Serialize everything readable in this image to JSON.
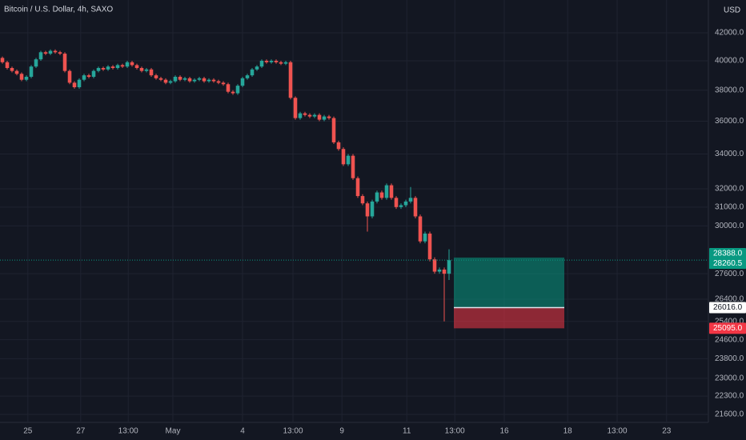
{
  "chart_data": {
    "type": "candlestick",
    "title": "Bitcoin / U.S. Dollar, 4h, SAXO",
    "currency": "USD",
    "up_color": "#26a69a",
    "down_color": "#ef5350",
    "log_scale": true,
    "grid": true,
    "open": [
      40200,
      39900,
      39500,
      39300,
      39100,
      38700,
      38900,
      39600,
      40100,
      40600,
      40500,
      40700,
      40600,
      40500,
      39300,
      38500,
      38200,
      38700,
      39000,
      38900,
      39300,
      39500,
      39400,
      39600,
      39500,
      39700,
      39600,
      39900,
      39700,
      39500,
      39300,
      39400,
      39000,
      38800,
      38700,
      38500,
      38600,
      38900,
      38700,
      38800,
      38600,
      38700,
      38800,
      38600,
      38700,
      38600,
      38500,
      38400,
      37900,
      37800,
      38300,
      38800,
      39000,
      39400,
      39600,
      40000,
      39900,
      40000,
      39900,
      39800,
      39900,
      37500,
      36200,
      36500,
      36400,
      36300,
      36400,
      36100,
      36300,
      36200,
      34700,
      34300,
      33400,
      33900,
      32600,
      31600,
      31200,
      30500,
      31300,
      31800,
      31500,
      32200,
      31500,
      31000,
      31100,
      31300,
      31500,
      30500,
      29200,
      29600,
      28300,
      27700,
      27800,
      27600
    ],
    "high": [
      40300,
      40000,
      39600,
      39400,
      39200,
      39000,
      39700,
      40200,
      40700,
      40700,
      40800,
      40800,
      40700,
      40600,
      39400,
      38600,
      38800,
      39100,
      39100,
      39400,
      39600,
      39600,
      39700,
      39700,
      39800,
      39800,
      40000,
      40000,
      39800,
      39600,
      39500,
      39500,
      39100,
      38900,
      38800,
      38700,
      39000,
      39000,
      38900,
      38900,
      38800,
      38900,
      38900,
      38800,
      38800,
      38700,
      38600,
      38500,
      38000,
      38400,
      38900,
      39100,
      39500,
      39700,
      40100,
      40100,
      40100,
      40100,
      40000,
      40000,
      40000,
      37600,
      36600,
      36600,
      36500,
      36500,
      36500,
      36400,
      36400,
      36300,
      34800,
      34400,
      34000,
      34000,
      32700,
      31700,
      31300,
      31400,
      31900,
      31900,
      32300,
      32300,
      31600,
      31200,
      31400,
      32100,
      31600,
      30600,
      29700,
      29700,
      28400,
      27900,
      27900,
      28800
    ],
    "low": [
      39800,
      39400,
      39200,
      39000,
      38600,
      38600,
      38800,
      39500,
      40000,
      40400,
      40400,
      40500,
      40400,
      39200,
      38400,
      38100,
      38100,
      38600,
      38800,
      38800,
      39200,
      39300,
      39300,
      39400,
      39400,
      39500,
      39500,
      39600,
      39400,
      39200,
      39200,
      38900,
      38700,
      38600,
      38400,
      38400,
      38500,
      38600,
      38600,
      38500,
      38500,
      38600,
      38500,
      38500,
      38500,
      38400,
      38300,
      37800,
      37700,
      37700,
      38200,
      38700,
      38900,
      39300,
      39500,
      39800,
      39800,
      39800,
      39700,
      39700,
      37400,
      36100,
      36100,
      36300,
      36200,
      36200,
      36000,
      36000,
      36100,
      34600,
      34200,
      33300,
      33300,
      32500,
      31500,
      31100,
      29700,
      30400,
      31200,
      31400,
      31400,
      31400,
      30900,
      30900,
      31000,
      31200,
      30400,
      29100,
      29100,
      28200,
      27600,
      27600,
      25400,
      27300
    ],
    "close": [
      39900,
      39500,
      39300,
      39100,
      38700,
      38900,
      39600,
      40100,
      40600,
      40500,
      40700,
      40600,
      40500,
      39300,
      38500,
      38200,
      38700,
      39000,
      38900,
      39300,
      39500,
      39400,
      39600,
      39500,
      39700,
      39600,
      39900,
      39700,
      39500,
      39300,
      39400,
      39000,
      38800,
      38700,
      38500,
      38600,
      38900,
      38700,
      38800,
      38600,
      38700,
      38800,
      38600,
      38700,
      38600,
      38500,
      38400,
      37900,
      37800,
      38300,
      38800,
      39000,
      39400,
      39600,
      40000,
      39900,
      40000,
      39900,
      39800,
      39900,
      37500,
      36200,
      36500,
      36400,
      36300,
      36400,
      36100,
      36300,
      36200,
      34700,
      34300,
      33400,
      33900,
      32600,
      31600,
      31200,
      30500,
      31300,
      31800,
      31500,
      32200,
      31500,
      31000,
      31100,
      31300,
      31500,
      30500,
      29200,
      29600,
      28300,
      27700,
      27800,
      27600,
      28260.5
    ],
    "xlim": [
      -0.5,
      147
    ],
    "xticks": [
      {
        "value": 5.3,
        "label": "25"
      },
      {
        "value": 16.3,
        "label": "27"
      },
      {
        "value": 26.2,
        "label": "13:00"
      },
      {
        "value": 35.5,
        "label": "May"
      },
      {
        "value": 50,
        "label": "4"
      },
      {
        "value": 60.5,
        "label": "13:00"
      },
      {
        "value": 70.7,
        "label": "9"
      },
      {
        "value": 84.2,
        "label": "11"
      },
      {
        "value": 94.2,
        "label": "13:00"
      },
      {
        "value": 104.5,
        "label": "16"
      },
      {
        "value": 117.7,
        "label": "18"
      },
      {
        "value": 128,
        "label": "13:00"
      },
      {
        "value": 138.3,
        "label": "23"
      }
    ],
    "ylim": [
      21300,
      44470
    ],
    "yticks": [
      {
        "value": 42000,
        "label": "42000.0"
      },
      {
        "value": 40000,
        "label": "40000.0"
      },
      {
        "value": 38000,
        "label": "38000.0"
      },
      {
        "value": 36000,
        "label": "36000.0"
      },
      {
        "value": 34000,
        "label": "34000.0"
      },
      {
        "value": 32000,
        "label": "32000.0"
      },
      {
        "value": 31000,
        "label": "31000.0"
      },
      {
        "value": 30000,
        "label": "30000.0"
      },
      {
        "value": 27600,
        "label": "27600.0"
      },
      {
        "value": 26400,
        "label": "26400.0"
      },
      {
        "value": 25400,
        "label": "25400.0"
      },
      {
        "value": 24600,
        "label": "24600.0"
      },
      {
        "value": 23800,
        "label": "23800.0"
      },
      {
        "value": 23000,
        "label": "23000.0"
      },
      {
        "value": 22300,
        "label": "22300.0"
      },
      {
        "value": 21600,
        "label": "21600.0"
      }
    ],
    "last_price": {
      "value": 28260.5,
      "label": "28260.5",
      "color": "#089981"
    },
    "position": {
      "start": 94,
      "end": 117,
      "target": {
        "value": 28388,
        "label": "28388.0",
        "color": "#089981"
      },
      "entry": {
        "value": 26016,
        "label": "26016.0"
      },
      "stop": {
        "value": 25095,
        "label": "25095.0",
        "color": "#f23645"
      }
    }
  }
}
